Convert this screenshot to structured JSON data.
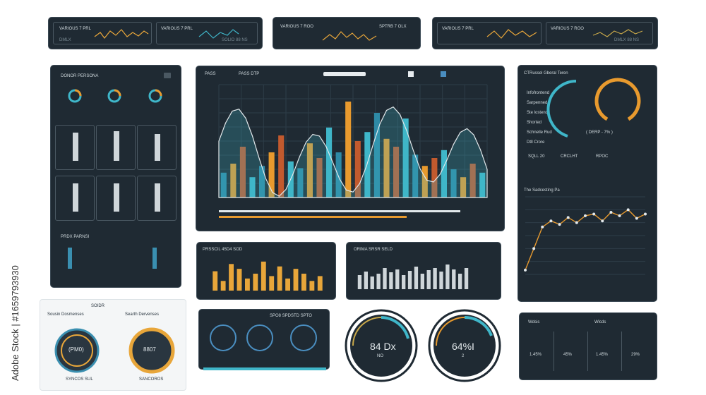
{
  "watermark_side": "Adobe Stock | #1659793930",
  "top_cards": [
    {
      "label": "VARIOUS 7 PRL",
      "sub": "DMLX"
    },
    {
      "label": "VARIOUS 7 PRL",
      "sub": "SOLIO 88 NS"
    },
    {
      "label": "VARIOUS 7 ROO",
      "sub": "SPTRB 7 OLX"
    },
    {
      "label": "VARIOUS 7 PRL",
      "sub": ""
    },
    {
      "label": "VARIOUS 7 ROO",
      "sub": ""
    },
    {
      "label": "VARIOUS 7 PRL",
      "sub": "DMLX 88 NS"
    }
  ],
  "left_panel": {
    "title": "DONOR PERSONA",
    "footer": "PRDX PARNSI"
  },
  "main_chart": {
    "tab1": "PASS",
    "tab2": "PASS DTP"
  },
  "right_panel": {
    "title": "CTRussel Gberal Teren",
    "items": [
      "Infofrontend",
      "Sarpenned",
      "Ste lostend",
      "Shorted",
      "Schnelle Rud",
      "Dtll Crore"
    ],
    "gauge_label": "( DERP - 7% )",
    "line_title": "The Sadcesting Pa",
    "options": [
      "SQLL 20",
      "CRCLHT",
      "RPOC"
    ]
  },
  "mid_bar_left": {
    "title": "PRSSCIL 45D4 SOD"
  },
  "mid_bar_right": {
    "title": "ORIMA SRSR SELD"
  },
  "bottom_left": {
    "title1": "SOIDR",
    "title2": "Sousin Dosmenses",
    "title3": "Searth Dervenses",
    "gauge1": "(PM0)",
    "gauge2": "8807",
    "footer1": "SYNCOS SUL",
    "footer2": "SANCOROS"
  },
  "bottom_mid": {
    "title": "SPO8 SPDSTD SPTO"
  },
  "big_gauges": [
    {
      "value": "84 Dx",
      "sub": "NO"
    },
    {
      "value": "64%I",
      "sub": "2"
    }
  ],
  "stats": {
    "h1": "Wdsis",
    "h2": "Wlcds",
    "values": [
      "1.45%",
      "45%",
      "1.45%",
      "29%"
    ]
  },
  "colors": {
    "panel": "#1f2a33",
    "cyan": "#3fb6c9",
    "orange": "#e89a2e",
    "teal": "#2e8aa6"
  },
  "chart_data": [
    {
      "type": "bar",
      "series": [
        {
          "values": [
            22,
            30,
            45,
            18,
            28,
            40,
            55,
            32,
            26,
            48,
            35,
            62,
            40,
            85,
            50,
            58,
            75,
            52,
            45,
            70,
            38,
            28,
            35,
            42,
            25,
            18,
            30,
            22
          ]
        }
      ],
      "ylim": [
        0,
        100
      ]
    },
    {
      "type": "bar",
      "series": [
        {
          "values": [
            40,
            20,
            55,
            45,
            25,
            35,
            60,
            30,
            50,
            25,
            45,
            35,
            20,
            30
          ]
        }
      ],
      "ylim": [
        0,
        70
      ]
    },
    {
      "type": "bar",
      "series": [
        {
          "values": [
            20,
            25,
            18,
            22,
            30,
            24,
            28,
            20,
            26,
            32,
            22,
            27,
            30,
            25,
            35,
            28,
            22,
            30
          ]
        }
      ],
      "ylim": [
        0,
        40
      ]
    },
    {
      "type": "line",
      "series": [
        {
          "values": [
            5,
            30,
            55,
            62,
            58,
            66,
            60,
            68,
            70,
            62,
            72,
            68,
            75,
            65,
            70
          ]
        }
      ],
      "ylim": [
        0,
        90
      ]
    }
  ]
}
